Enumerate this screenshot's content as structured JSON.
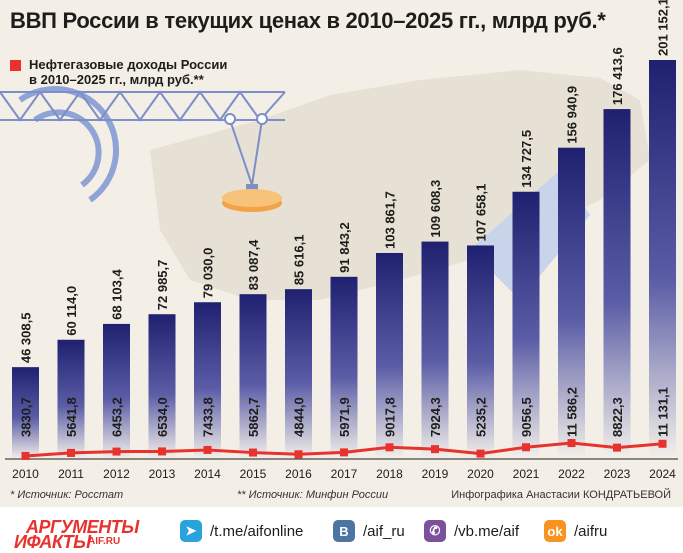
{
  "title": "ВВП России в текущих ценах в 2010–2025 гг., млрд руб.*",
  "legend_label": "Нефтегазовые доходы России\nв 2010–2025 гг., млрд руб.**",
  "source_gdp": "* Источник: Росстат",
  "source_oil": "** Источник: Минфин России",
  "credit": "Инфографика Анастасии КОНДРАТЬЕВОЙ",
  "colors": {
    "bar_top": "#2a2c79",
    "bar_bottom": "#f4f1ea",
    "line": "#e8322d",
    "background": "#f3efe6"
  },
  "footer": {
    "logo_top": "АРГУМЕНТЫ",
    "logo_bottom": "ИФАКТЫ",
    "logo_site": "AIF.RU",
    "links": [
      {
        "icon": "telegram-icon",
        "text": "/t.me/aifonline",
        "color": "#2aa3dd"
      },
      {
        "icon": "vk-icon",
        "text": "/aif_ru",
        "color": "#4c75a3"
      },
      {
        "icon": "viber-icon",
        "text": "/vb.me/aif",
        "color": "#7b519d"
      },
      {
        "icon": "ok-icon",
        "text": "/aifru",
        "color": "#f7931e"
      }
    ]
  },
  "chart_data": {
    "type": "bar",
    "categories": [
      "2010",
      "2011",
      "2012",
      "2013",
      "2014",
      "2015",
      "2016",
      "2017",
      "2018",
      "2019",
      "2020",
      "2021",
      "2022",
      "2023",
      "2024"
    ],
    "series": [
      {
        "values": [
          46308.5,
          60114.0,
          68103.4,
          72985.7,
          79030.0,
          83087.4,
          85616.1,
          91843.2,
          103861.7,
          109608.3,
          107658.1,
          134727.5,
          156940.9,
          176413.6,
          201152.1
        ],
        "labels": [
          "46 308,5",
          "60 114,0",
          "68 103,4",
          "72 985,7",
          "79 030,0",
          "83 087,4",
          "85 616,1",
          "91 843,2",
          "103 861,7",
          "109 608,3",
          "107 658,1",
          "134 727,5",
          "156 940,9",
          "176 413,6",
          "201 152,1"
        ]
      },
      {
        "name": "Нефтегазовые доходы России в 2010–2025 гг., млрд руб.**",
        "type": "line",
        "values": [
          3830.7,
          5641.8,
          6453.2,
          6534.0,
          7433.8,
          5862.7,
          4844.0,
          5971.9,
          9017.8,
          7924.3,
          5235.2,
          9056.5,
          11586.2,
          8822.3,
          11131.1
        ],
        "labels": [
          "3830,7",
          "5641,8",
          "6453,2",
          "6534,0",
          "7433,8",
          "5862,7",
          "4844,0",
          "5971,9",
          "9017,8",
          "7924,3",
          "5235,2",
          "9056,5",
          "11 586,2",
          "8822,3",
          "11 131,1"
        ]
      }
    ],
    "title": "ВВП России в текущих ценах в 2010–2025 гг., млрд руб.*",
    "xlabel": "",
    "ylabel": "",
    "grid": false,
    "legend_position": "top-left"
  }
}
